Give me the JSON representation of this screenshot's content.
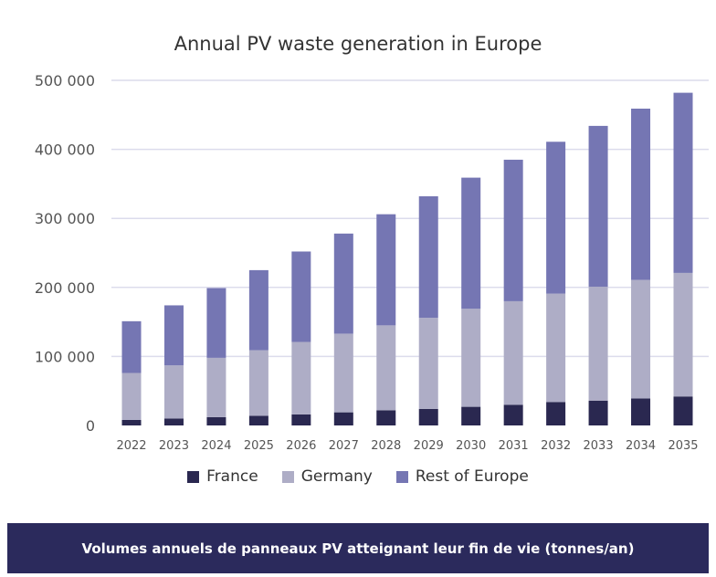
{
  "chart_data": {
    "type": "bar",
    "stacked": true,
    "title": "Annual PV waste generation in Europe",
    "categories": [
      "2022",
      "2023",
      "2024",
      "2025",
      "2026",
      "2027",
      "2028",
      "2029",
      "2030",
      "2031",
      "2032",
      "2033",
      "2034",
      "2035"
    ],
    "series": [
      {
        "name": "France",
        "color": "#2a2850",
        "values": [
          8000,
          10000,
          12000,
          14000,
          16000,
          19000,
          22000,
          24000,
          27000,
          30000,
          34000,
          36000,
          39000,
          42000
        ]
      },
      {
        "name": "Germany",
        "color": "#aeadc6",
        "values": [
          68000,
          77000,
          86000,
          95000,
          105000,
          114000,
          123000,
          132000,
          142000,
          150000,
          157000,
          165000,
          172000,
          179000
        ]
      },
      {
        "name": "Rest of Europe",
        "color": "#7576b3",
        "values": [
          75000,
          87000,
          101000,
          116000,
          131000,
          145000,
          161000,
          176000,
          190000,
          205000,
          220000,
          233000,
          248000,
          261000
        ]
      }
    ],
    "ylim": [
      0,
      500000
    ],
    "yticks": [
      0,
      100000,
      200000,
      300000,
      400000,
      500000
    ],
    "ytick_labels": [
      "0",
      "100 000",
      "200 000",
      "300 000",
      "400 000",
      "500 000"
    ],
    "grid": true,
    "legend_position": "bottom"
  },
  "footer": {
    "caption": "Volumes annuels de panneaux PV atteignant leur fin de vie (tonnes/an)"
  }
}
